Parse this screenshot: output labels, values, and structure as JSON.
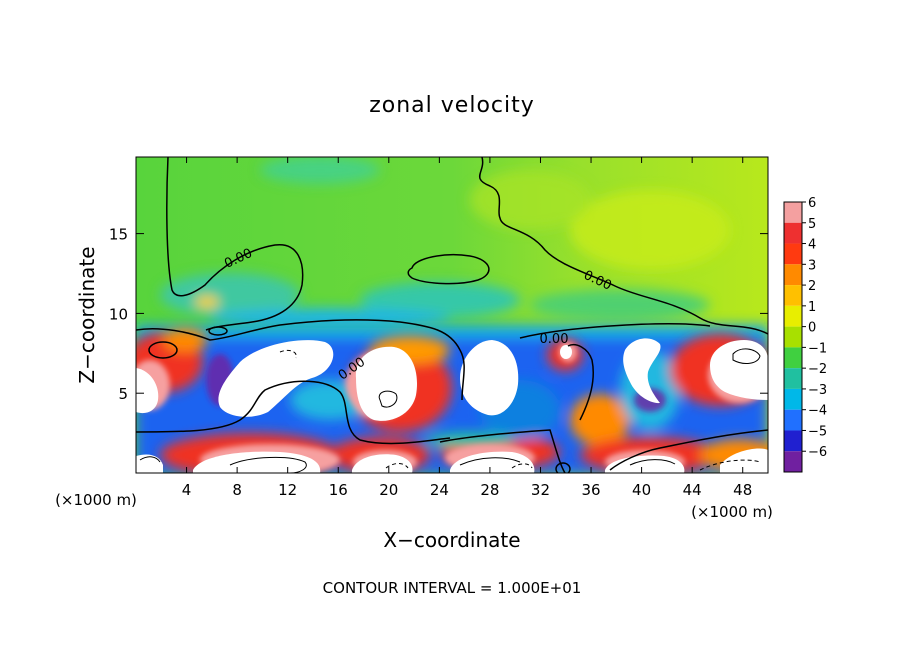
{
  "chart_data": {
    "type": "heatmap",
    "title": "zonal velocity",
    "xlabel": "X−coordinate",
    "ylabel": "Z−coordinate",
    "x_unit_label": "(×1000 m)",
    "z_unit_label": "(×1000 m)",
    "x_ticks": [
      4,
      8,
      12,
      16,
      20,
      24,
      28,
      32,
      36,
      40,
      44,
      48
    ],
    "z_ticks": [
      5,
      10,
      15
    ],
    "xlim": [
      0,
      50
    ],
    "zlim": [
      0,
      19.8
    ],
    "colorbar": {
      "ticks": [
        "6",
        "5",
        "4",
        "3",
        "2",
        "1",
        "0",
        "−1",
        "−2",
        "−3",
        "−4",
        "−5",
        "−6"
      ],
      "colors": [
        "#f4a0a0",
        "#ee3030",
        "#ff3a10",
        "#ff8a00",
        "#ffc000",
        "#e8ee00",
        "#a8e000",
        "#40d040",
        "#20c0a0",
        "#00b8e8",
        "#2070ff",
        "#2020d0",
        "#7020a0"
      ]
    },
    "contour_labels": [
      "0.00",
      "0.00",
      "0.00",
      "0.00"
    ],
    "footer": "CONTOUR INTERVAL = 1.000E+01"
  }
}
